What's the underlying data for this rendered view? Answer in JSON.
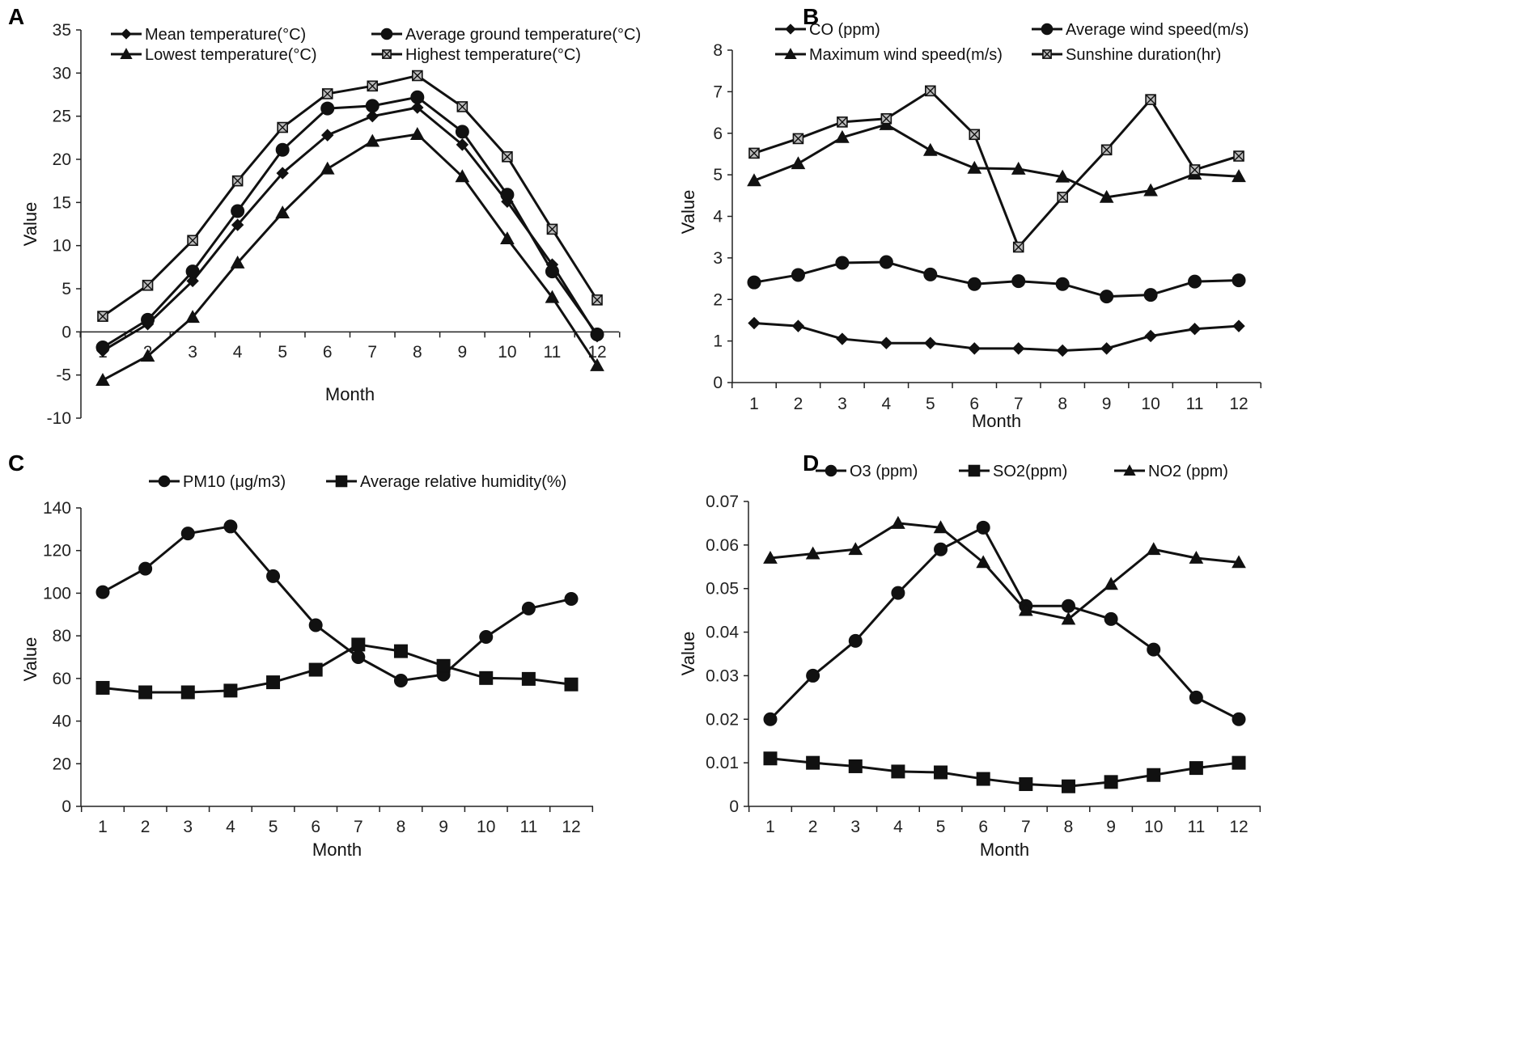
{
  "chart_data": [
    {
      "panel": "A",
      "type": "line",
      "xlabel": "Month",
      "ylabel": "Value",
      "ylim": [
        -10,
        35
      ],
      "yticks": [
        35,
        30,
        25,
        20,
        15,
        10,
        5,
        0,
        -5,
        -10
      ],
      "categories": [
        "1",
        "2",
        "3",
        "4",
        "5",
        "6",
        "7",
        "8",
        "9",
        "10",
        "11",
        "12"
      ],
      "series": [
        {
          "name": "Mean temperature(°C)",
          "marker": "diamond",
          "values": [
            -2.2,
            0.9,
            5.9,
            12.4,
            18.4,
            22.8,
            25.0,
            26.0,
            21.7,
            15.1,
            7.8,
            -0.5
          ]
        },
        {
          "name": "Average ground temperature(°C)",
          "marker": "circle",
          "values": [
            -1.8,
            1.4,
            7.0,
            14.0,
            21.1,
            25.9,
            26.2,
            27.2,
            23.2,
            15.9,
            7.0,
            -0.3
          ]
        },
        {
          "name": "Lowest temperature(°C)",
          "marker": "triangle",
          "values": [
            -5.6,
            -2.8,
            1.7,
            8.0,
            13.8,
            18.9,
            22.1,
            22.9,
            18.0,
            10.8,
            4.0,
            -3.9
          ]
        },
        {
          "name": "Highest temperature(°C)",
          "marker": "xsquare",
          "values": [
            1.8,
            5.4,
            10.6,
            17.5,
            23.7,
            27.6,
            28.5,
            29.7,
            26.1,
            20.3,
            11.9,
            3.7
          ]
        }
      ]
    },
    {
      "panel": "B",
      "type": "line",
      "xlabel": "Month",
      "ylabel": "Value",
      "ylim": [
        0,
        8
      ],
      "yticks": [
        8,
        7,
        6,
        5,
        4,
        3,
        2,
        1,
        0
      ],
      "categories": [
        "1",
        "2",
        "3",
        "4",
        "5",
        "6",
        "7",
        "8",
        "9",
        "10",
        "11",
        "12"
      ],
      "series": [
        {
          "name": "CO (ppm)",
          "marker": "diamond",
          "values": [
            1.43,
            1.36,
            1.05,
            0.95,
            0.95,
            0.82,
            0.82,
            0.77,
            0.82,
            1.12,
            1.29,
            1.36
          ]
        },
        {
          "name": "Average wind speed(m/s)",
          "marker": "circle",
          "values": [
            2.41,
            2.59,
            2.88,
            2.9,
            2.6,
            2.37,
            2.44,
            2.37,
            2.07,
            2.11,
            2.43,
            2.46
          ]
        },
        {
          "name": "Maximum wind speed(m/s)",
          "marker": "triangle",
          "values": [
            4.86,
            5.27,
            5.9,
            6.21,
            5.59,
            5.16,
            5.14,
            4.95,
            4.46,
            4.62,
            5.02,
            4.96
          ]
        },
        {
          "name": "Sunshine duration(hr)",
          "marker": "xsquare",
          "values": [
            5.52,
            5.87,
            6.27,
            6.35,
            7.02,
            5.97,
            3.26,
            4.46,
            5.6,
            6.81,
            5.12,
            5.45
          ]
        }
      ]
    },
    {
      "panel": "C",
      "type": "line",
      "xlabel": "Month",
      "ylabel": "Value",
      "ylim": [
        0,
        140
      ],
      "yticks": [
        140,
        120,
        100,
        80,
        60,
        40,
        20,
        0
      ],
      "categories": [
        "1",
        "2",
        "3",
        "4",
        "5",
        "6",
        "7",
        "8",
        "9",
        "10",
        "11",
        "12"
      ],
      "series": [
        {
          "name": "PM10 (μg/m3)",
          "marker": "circle",
          "values": [
            100.5,
            111.5,
            128.0,
            131.3,
            108.0,
            85.0,
            70.0,
            59.0,
            61.8,
            79.5,
            92.8,
            97.3
          ]
        },
        {
          "name": "Average relative humidity(%)",
          "marker": "square",
          "values": [
            55.6,
            53.5,
            53.5,
            54.3,
            58.2,
            64.1,
            75.9,
            72.8,
            65.9,
            60.2,
            59.8,
            57.2
          ]
        }
      ]
    },
    {
      "panel": "D",
      "type": "line",
      "xlabel": "Month",
      "ylabel": "Value",
      "ylim": [
        0,
        0.07
      ],
      "yticks": [
        "0.07",
        "0.06",
        "0.05",
        "0.04",
        "0.03",
        "0.02",
        "0.01",
        "0"
      ],
      "categories": [
        "1",
        "2",
        "3",
        "4",
        "5",
        "6",
        "7",
        "8",
        "9",
        "10",
        "11",
        "12"
      ],
      "series": [
        {
          "name": "O3 (ppm)",
          "marker": "circle",
          "values": [
            0.02,
            0.03,
            0.038,
            0.049,
            0.059,
            0.064,
            0.046,
            0.046,
            0.043,
            0.036,
            0.025,
            0.02
          ]
        },
        {
          "name": "SO2(ppm)",
          "marker": "square",
          "values": [
            0.011,
            0.01,
            0.0092,
            0.008,
            0.0078,
            0.0063,
            0.0051,
            0.0046,
            0.0056,
            0.0072,
            0.0088,
            0.01
          ]
        },
        {
          "name": "NO2 (ppm)",
          "marker": "triangle",
          "values": [
            0.057,
            0.058,
            0.059,
            0.065,
            0.064,
            0.056,
            0.045,
            0.043,
            0.051,
            0.059,
            0.057,
            0.056
          ]
        }
      ]
    }
  ]
}
